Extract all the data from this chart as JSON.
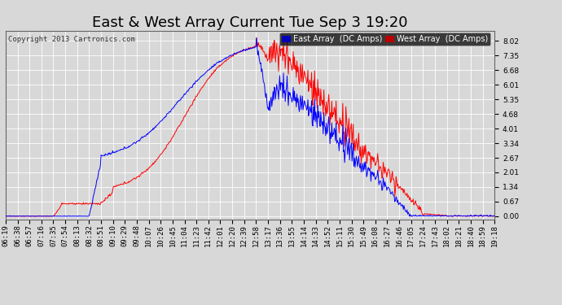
{
  "title": "East & West Array Current Tue Sep 3 19:20",
  "copyright": "Copyright 2013 Cartronics.com",
  "legend_east": "East Array  (DC Amps)",
  "legend_west": "West Array  (DC Amps)",
  "east_color": "#0000ff",
  "west_color": "#ff0000",
  "legend_east_bg": "#0000bb",
  "legend_west_bg": "#bb0000",
  "yticks": [
    0.0,
    0.67,
    1.34,
    2.01,
    2.67,
    3.34,
    4.01,
    4.68,
    5.35,
    6.01,
    6.68,
    7.35,
    8.02
  ],
  "ylim": [
    -0.15,
    8.5
  ],
  "plot_bg": "#d8d8d8",
  "grid_color": "#ffffff",
  "title_fontsize": 13,
  "tick_fontsize": 6.5,
  "num_points": 800,
  "xtick_labels": [
    "06:19",
    "06:38",
    "06:57",
    "07:16",
    "07:35",
    "07:54",
    "08:13",
    "08:32",
    "08:51",
    "09:10",
    "09:29",
    "09:48",
    "10:07",
    "10:26",
    "10:45",
    "11:04",
    "11:23",
    "11:42",
    "12:01",
    "12:20",
    "12:39",
    "12:58",
    "13:17",
    "13:36",
    "13:55",
    "14:14",
    "14:33",
    "14:52",
    "15:11",
    "15:30",
    "15:49",
    "16:08",
    "16:27",
    "16:46",
    "17:05",
    "17:24",
    "17:43",
    "18:02",
    "18:21",
    "18:40",
    "18:59",
    "19:18"
  ]
}
